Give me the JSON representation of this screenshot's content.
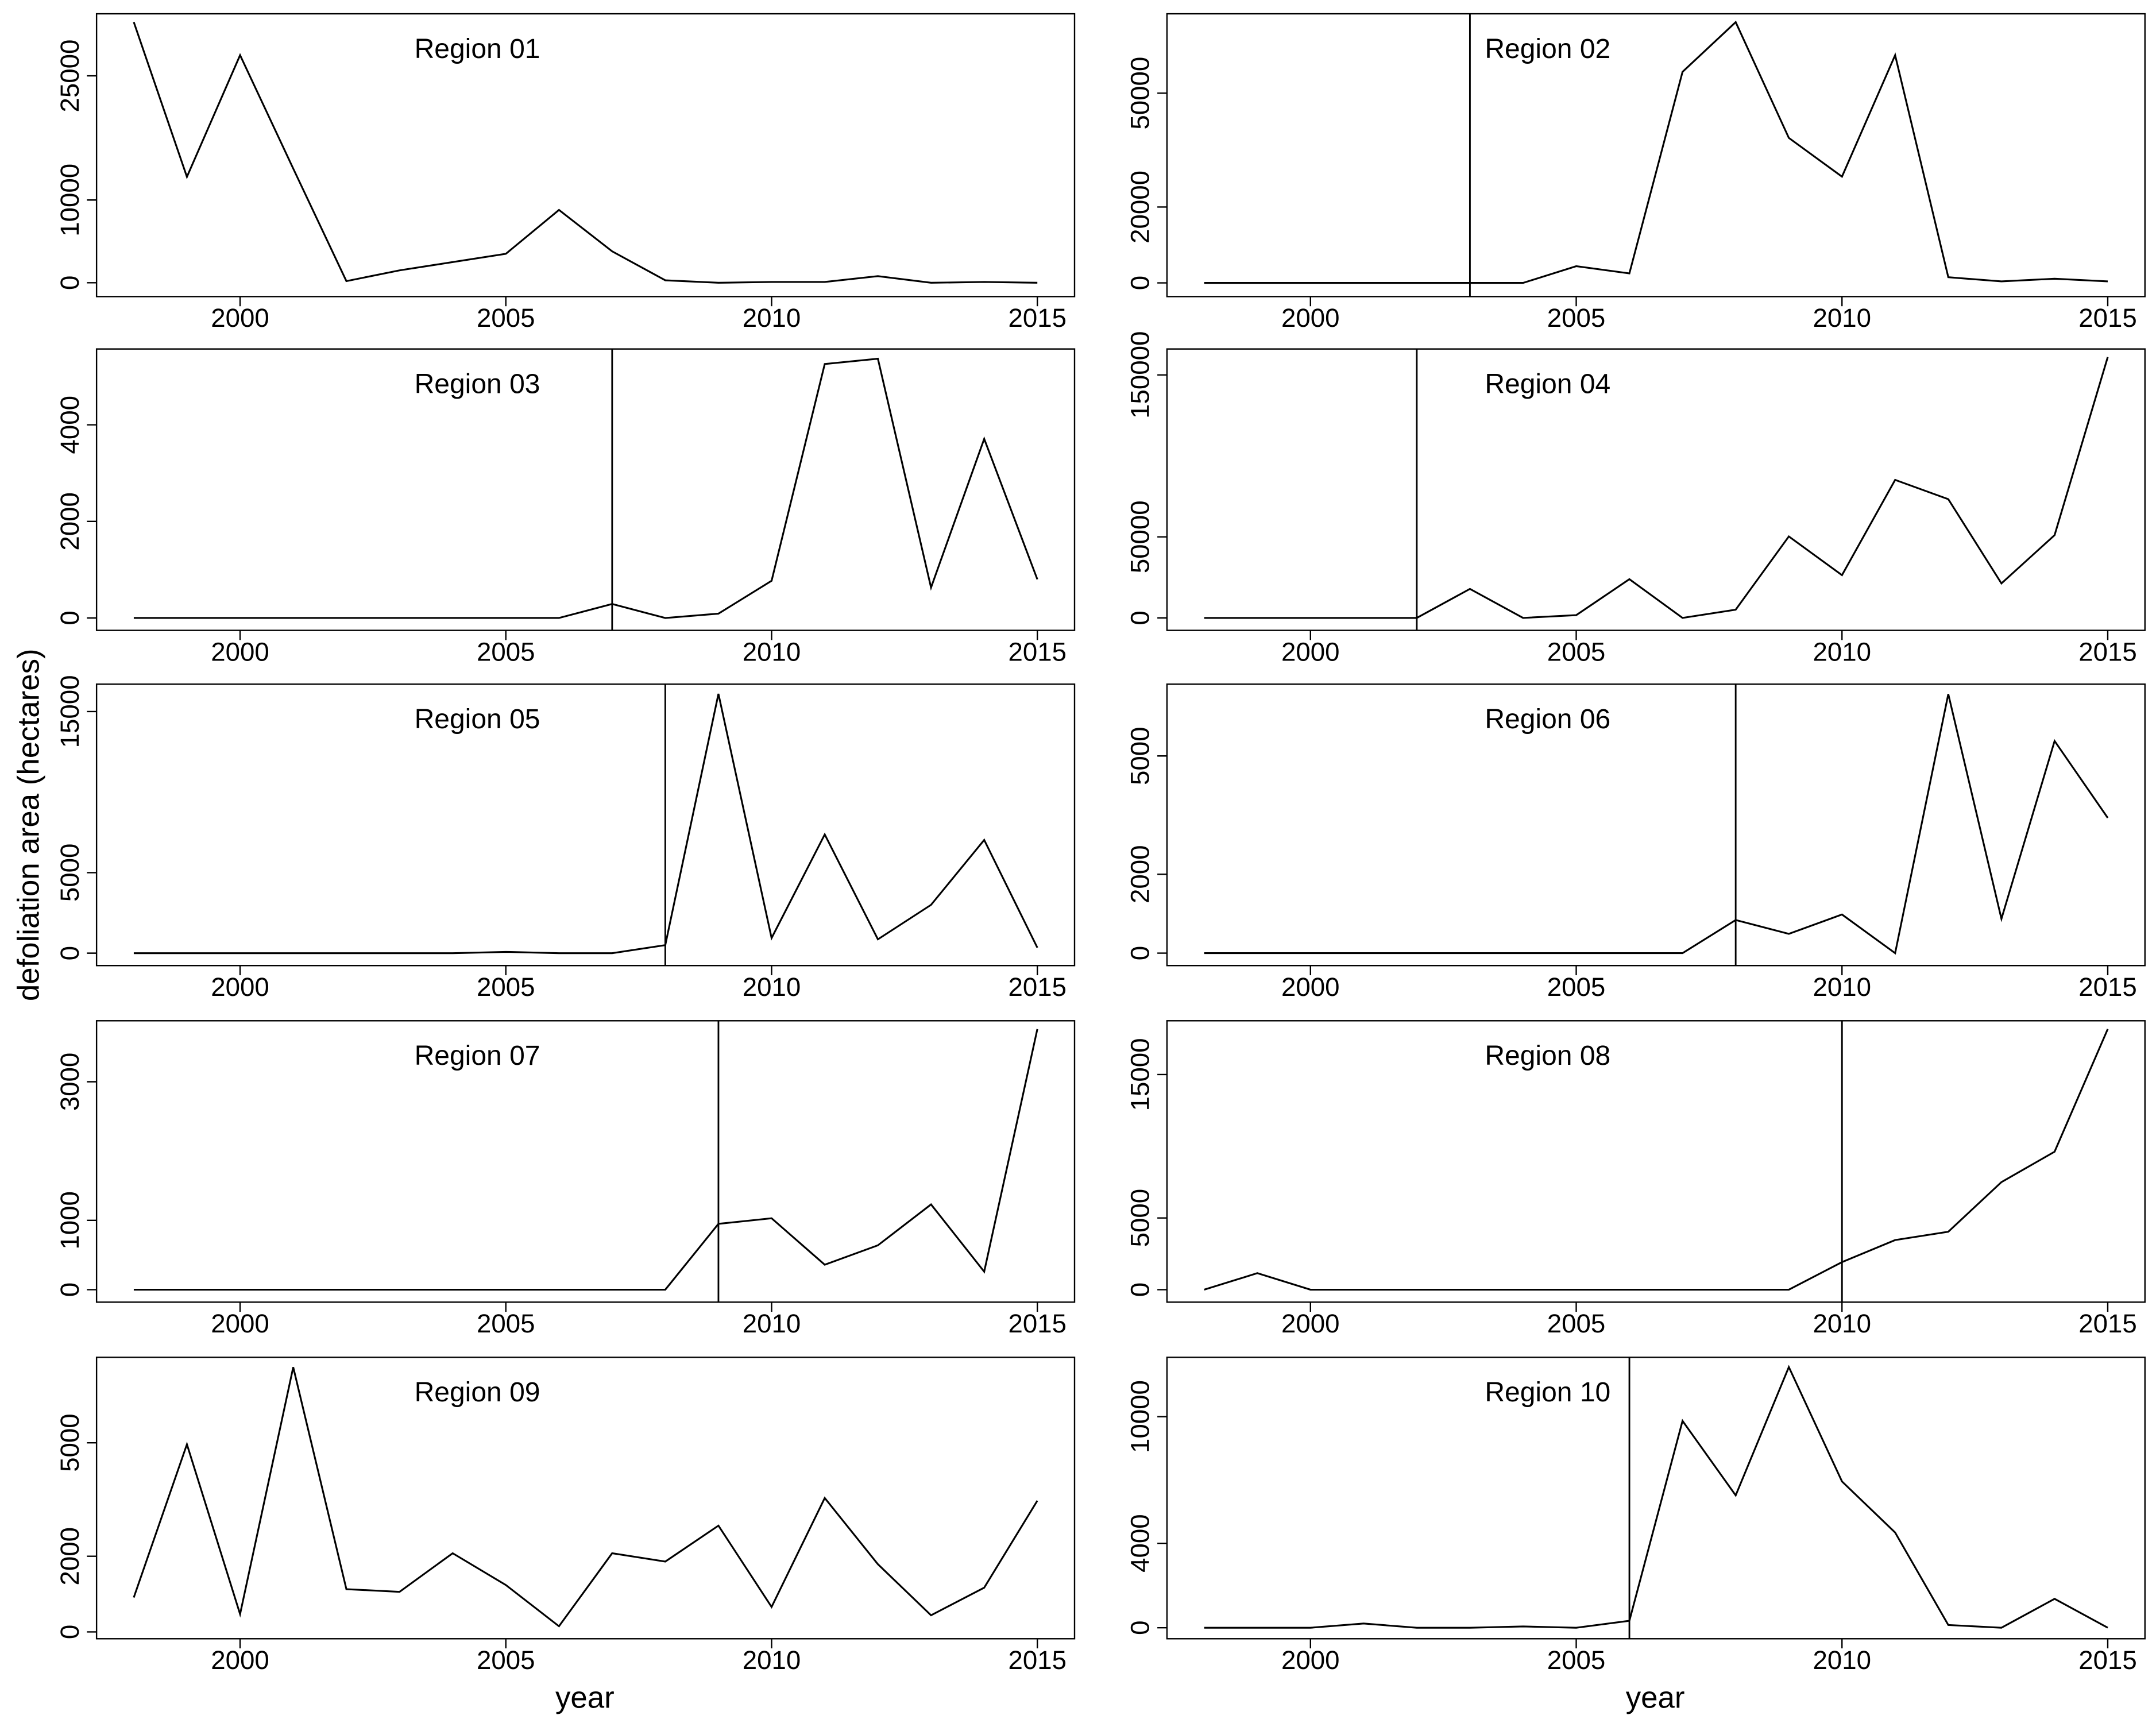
{
  "ylabel": "defoliation area (hectares)",
  "xlabel": "year",
  "chart_data": [
    {
      "type": "line",
      "title": "Region 01",
      "x": [
        1998,
        1999,
        2000,
        2001,
        2002,
        2003,
        2004,
        2005,
        2006,
        2007,
        2008,
        2009,
        2010,
        2011,
        2012,
        2013,
        2014,
        2015
      ],
      "values": [
        31500,
        12800,
        27500,
        13800,
        200,
        1500,
        2500,
        3500,
        8800,
        3800,
        300,
        0,
        100,
        100,
        800,
        0,
        100,
        0
      ],
      "color": "#000000",
      "xlim": [
        1997.3,
        2015.7
      ],
      "xticks": [
        2000,
        2005,
        2010,
        2015
      ],
      "ylim": [
        -1667,
        32500
      ],
      "yticks": [
        0,
        10000,
        25000
      ]
    },
    {
      "type": "line",
      "title": "Region 02",
      "x": [
        1998,
        1999,
        2000,
        2001,
        2002,
        2003,
        2004,
        2005,
        2006,
        2007,
        2008,
        2009,
        2010,
        2011,
        2012,
        2013,
        2014,
        2015
      ],
      "values": [
        0,
        0,
        0,
        0,
        0,
        0,
        0,
        4400,
        2500,
        55600,
        68700,
        38200,
        28000,
        60000,
        1500,
        400,
        1100,
        400
      ],
      "color": "#000000",
      "xlim": [
        1997.3,
        2015.7
      ],
      "xticks": [
        2000,
        2005,
        2010,
        2015
      ],
      "ylim": [
        -3600,
        70900
      ],
      "yticks": [
        0,
        20000,
        50000
      ],
      "vline": 2003
    },
    {
      "type": "line",
      "title": "Region 03",
      "x": [
        1998,
        1999,
        2000,
        2001,
        2002,
        2003,
        2004,
        2005,
        2006,
        2007,
        2008,
        2009,
        2010,
        2011,
        2012,
        2013,
        2014,
        2015
      ],
      "values": [
        0,
        0,
        0,
        0,
        0,
        0,
        0,
        0,
        0,
        290,
        0,
        90,
        770,
        5260,
        5370,
        630,
        3710,
        800
      ],
      "color": "#000000",
      "xlim": [
        1997.3,
        2015.7
      ],
      "xticks": [
        2000,
        2005,
        2010,
        2015
      ],
      "ylim": [
        -257,
        5571
      ],
      "yticks": [
        0,
        2000,
        4000
      ],
      "vline": 2007
    },
    {
      "type": "line",
      "title": "Region 04",
      "x": [
        1998,
        1999,
        2000,
        2001,
        2002,
        2003,
        2004,
        2005,
        2006,
        2007,
        2008,
        2009,
        2010,
        2011,
        2012,
        2013,
        2014,
        2015
      ],
      "values": [
        0,
        0,
        0,
        0,
        0,
        17900,
        0,
        1700,
        23900,
        0,
        5100,
        50300,
        26400,
        85200,
        73300,
        21300,
        51100,
        161000
      ],
      "color": "#000000",
      "xlim": [
        1997.3,
        2015.7
      ],
      "xticks": [
        2000,
        2005,
        2010,
        2015
      ],
      "ylim": [
        -7700,
        166000
      ],
      "yticks": [
        0,
        50000,
        150000
      ],
      "vline": 2002
    },
    {
      "type": "line",
      "title": "Region 05",
      "x": [
        1998,
        1999,
        2000,
        2001,
        2002,
        2003,
        2004,
        2005,
        2006,
        2007,
        2008,
        2009,
        2010,
        2011,
        2012,
        2013,
        2014,
        2015
      ],
      "values": [
        0,
        0,
        0,
        0,
        0,
        0,
        0,
        80,
        0,
        0,
        500,
        16100,
        940,
        7370,
        860,
        3000,
        7030,
        340
      ],
      "color": "#000000",
      "xlim": [
        1997.3,
        2015.7
      ],
      "xticks": [
        2000,
        2005,
        2010,
        2015
      ],
      "ylim": [
        -770,
        16700
      ],
      "yticks": [
        0,
        5000,
        15000
      ],
      "vline": 2008
    },
    {
      "type": "line",
      "title": "Region 06",
      "x": [
        1998,
        1999,
        2000,
        2001,
        2002,
        2003,
        2004,
        2005,
        2006,
        2007,
        2008,
        2009,
        2010,
        2011,
        2012,
        2013,
        2014,
        2015
      ],
      "values": [
        0,
        0,
        0,
        0,
        0,
        0,
        0,
        0,
        0,
        0,
        840,
        490,
        980,
        0,
        6570,
        870,
        5380,
        3430
      ],
      "color": "#000000",
      "xlim": [
        1997.3,
        2015.7
      ],
      "xticks": [
        2000,
        2005,
        2010,
        2015
      ],
      "ylim": [
        -315,
        6820
      ],
      "yticks": [
        0,
        2000,
        5000
      ],
      "vline": 2008
    },
    {
      "type": "line",
      "title": "Region 07",
      "x": [
        1998,
        1999,
        2000,
        2001,
        2002,
        2003,
        2004,
        2005,
        2006,
        2007,
        2008,
        2009,
        2010,
        2011,
        2012,
        2013,
        2014,
        2015
      ],
      "values": [
        0,
        0,
        0,
        0,
        0,
        0,
        0,
        0,
        0,
        0,
        0,
        950,
        1030,
        360,
        640,
        1230,
        260,
        3760
      ],
      "color": "#000000",
      "xlim": [
        1997.3,
        2015.7
      ],
      "xticks": [
        2000,
        2005,
        2010,
        2015
      ],
      "ylim": [
        -180,
        3880
      ],
      "yticks": [
        0,
        1000,
        3000
      ],
      "vline": 2009
    },
    {
      "type": "line",
      "title": "Region 08",
      "x": [
        1998,
        1999,
        2000,
        2001,
        2002,
        2003,
        2004,
        2005,
        2006,
        2007,
        2008,
        2009,
        2010,
        2011,
        2012,
        2013,
        2014,
        2015
      ],
      "values": [
        0,
        1150,
        0,
        0,
        0,
        0,
        0,
        0,
        0,
        0,
        0,
        0,
        1920,
        3460,
        4040,
        7500,
        9620,
        18170
      ],
      "color": "#000000",
      "xlim": [
        1997.3,
        2015.7
      ],
      "xticks": [
        2000,
        2005,
        2010,
        2015
      ],
      "ylim": [
        -870,
        18750
      ],
      "yticks": [
        0,
        5000,
        15000
      ],
      "vline": 2010
    },
    {
      "type": "line",
      "title": "Region 09",
      "x": [
        1998,
        1999,
        2000,
        2001,
        2002,
        2003,
        2004,
        2005,
        2006,
        2007,
        2008,
        2009,
        2010,
        2011,
        2012,
        2013,
        2014,
        2015
      ],
      "values": [
        910,
        4960,
        470,
        7000,
        1130,
        1060,
        2080,
        1240,
        150,
        2080,
        1860,
        2810,
        660,
        3540,
        1790,
        440,
        1170,
        3470
      ],
      "color": "#000000",
      "xlim": [
        1997.3,
        2015.7
      ],
      "xticks": [
        2000,
        2005,
        2010,
        2015
      ],
      "ylim": [
        -180,
        7260
      ],
      "yticks": [
        0,
        2000,
        5000
      ]
    },
    {
      "type": "line",
      "title": "Region 10",
      "x": [
        1998,
        1999,
        2000,
        2001,
        2002,
        2003,
        2004,
        2005,
        2006,
        2007,
        2008,
        2009,
        2010,
        2011,
        2012,
        2013,
        2014,
        2015
      ],
      "values": [
        0,
        0,
        0,
        200,
        0,
        0,
        60,
        0,
        330,
        9800,
        6270,
        12350,
        6930,
        4510,
        130,
        0,
        1370,
        0
      ],
      "color": "#000000",
      "xlim": [
        1997.3,
        2015.7
      ],
      "xticks": [
        2000,
        2005,
        2010,
        2015
      ],
      "ylim": [
        -520,
        12810
      ],
      "yticks": [
        0,
        4000,
        10000
      ],
      "vline": 2006
    }
  ]
}
